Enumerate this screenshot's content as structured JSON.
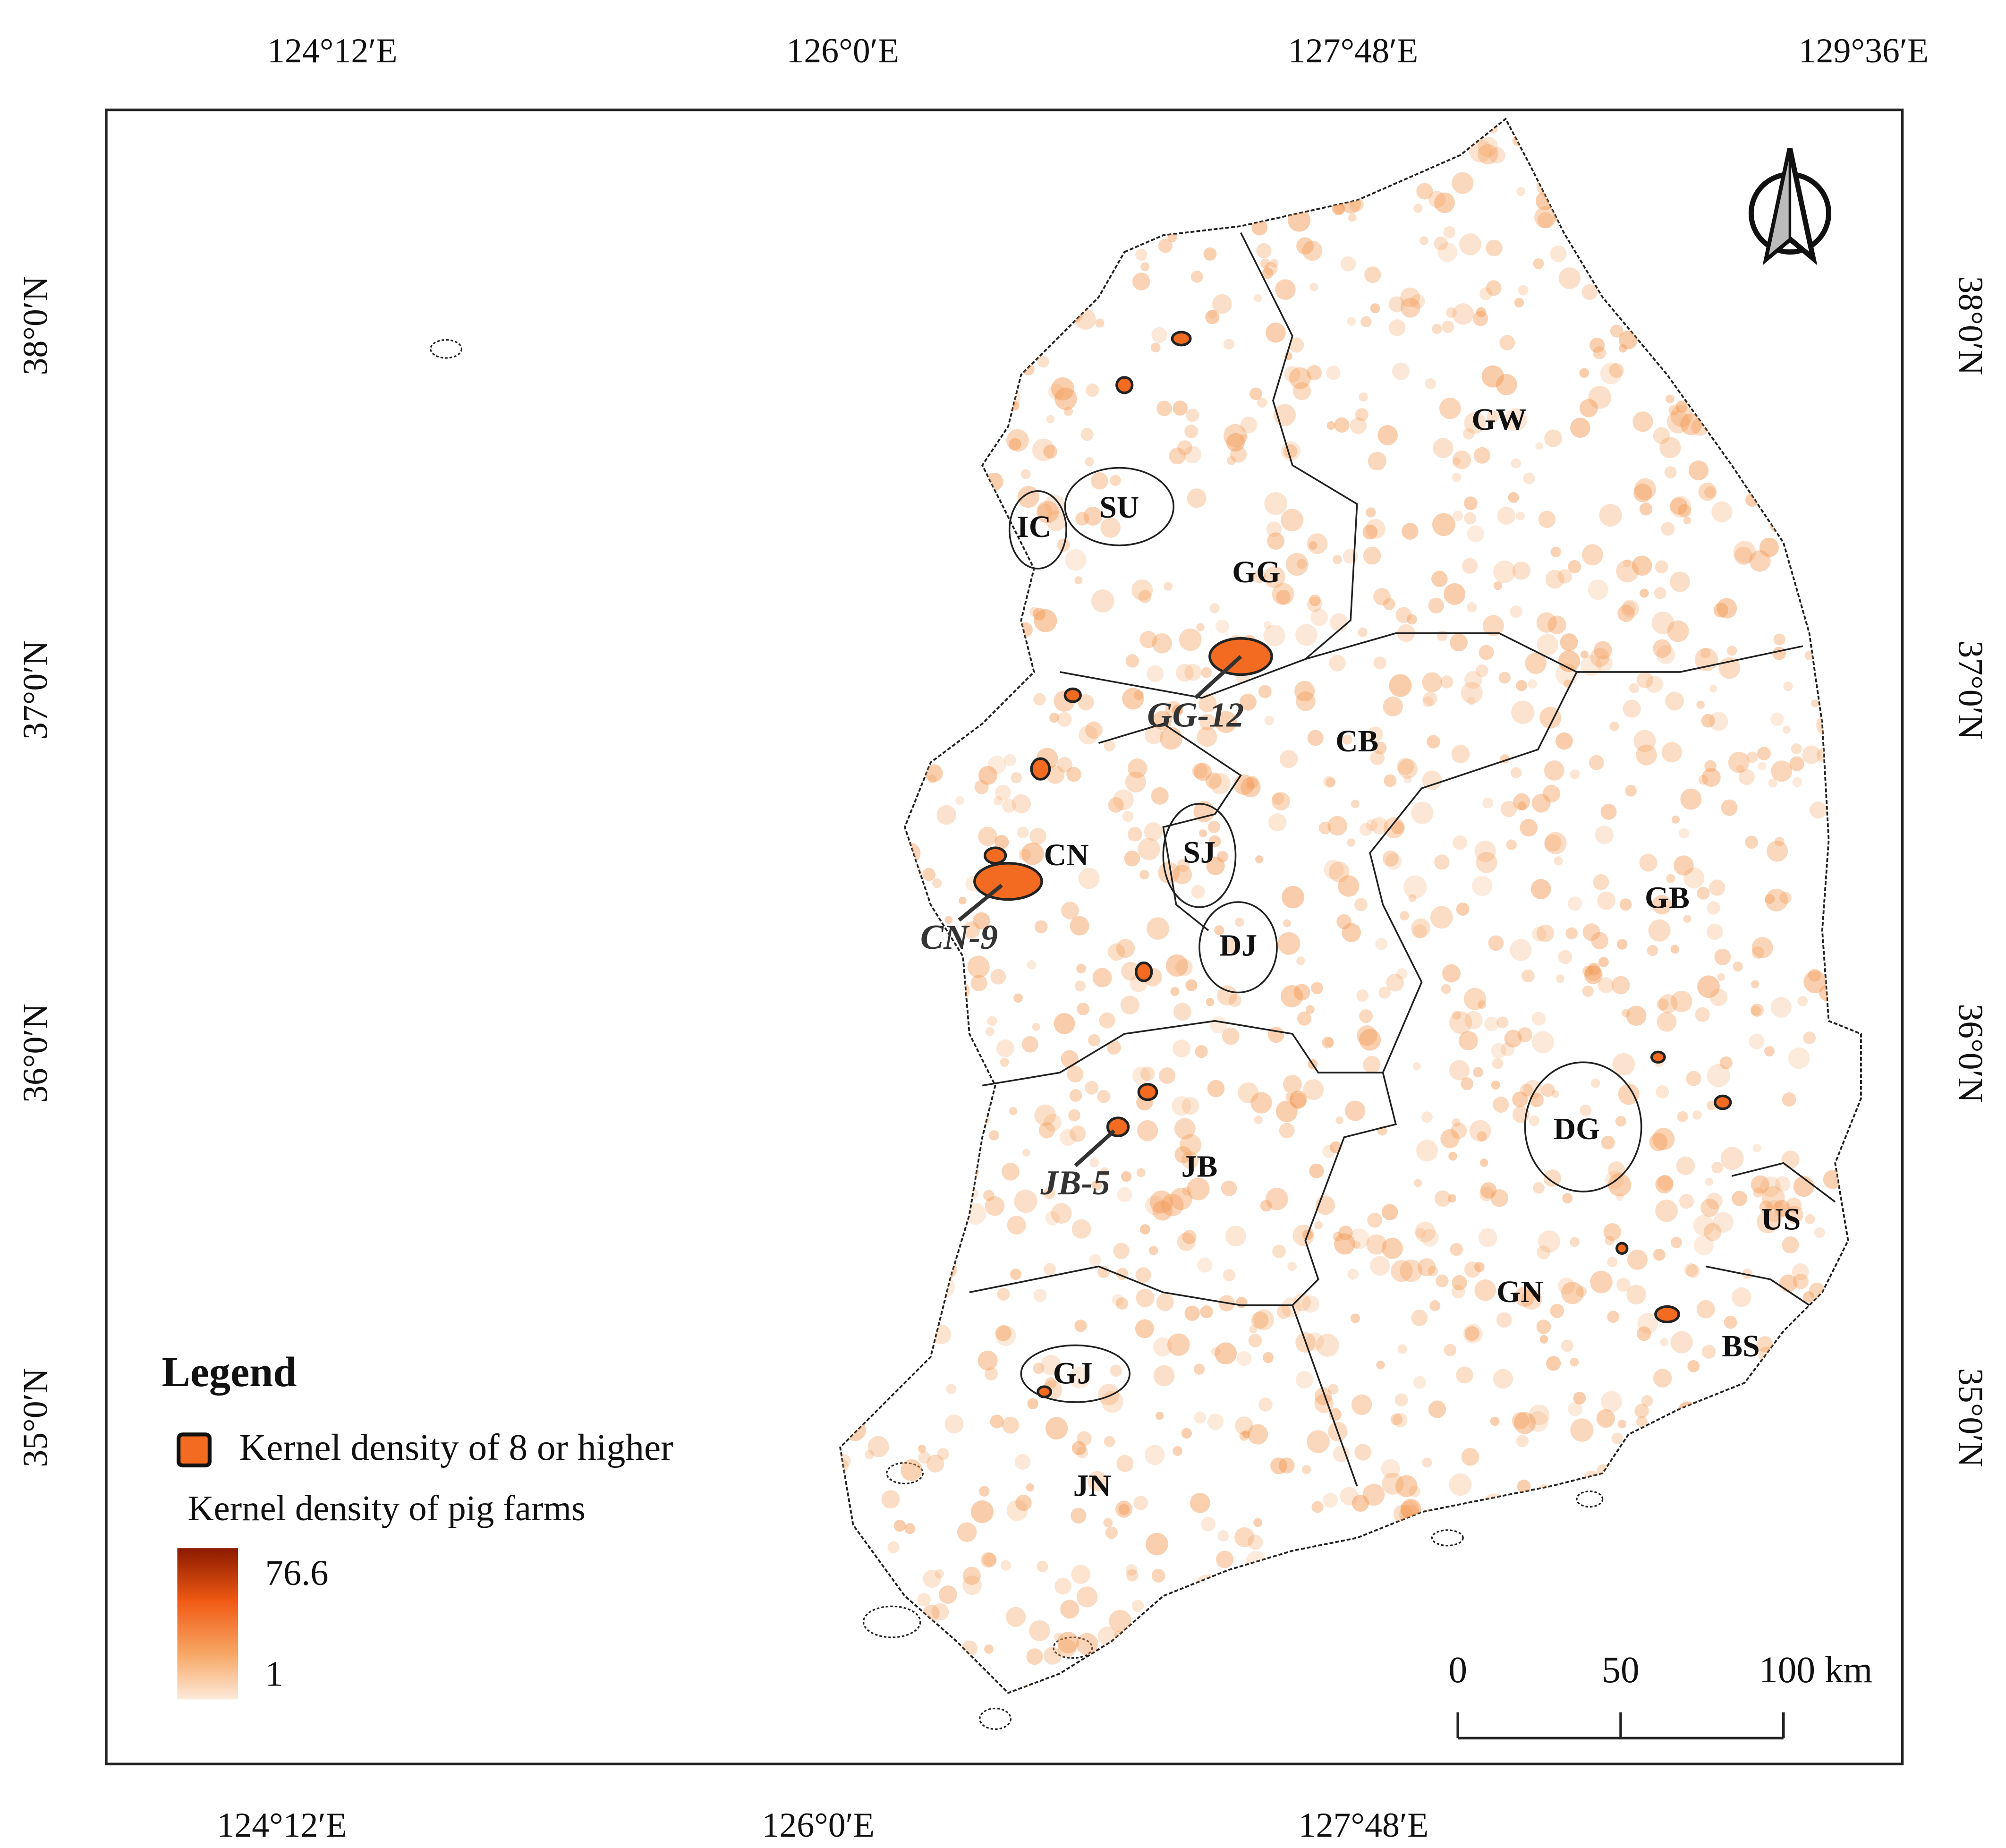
{
  "map": {
    "top_labels": [
      "124°12′E",
      "126°0′E",
      "127°48′E",
      "129°36′E"
    ],
    "bottom_labels": [
      "124°12′E",
      "126°0′E",
      "127°48′E"
    ],
    "left_labels": [
      "38°0′N",
      "37°0′N",
      "36°0′N",
      "35°0′N"
    ],
    "right_labels": [
      "38°0′N",
      "37°0′N",
      "36°0′N",
      "35°0′N"
    ],
    "regions": [
      "GW",
      "GG",
      "SU",
      "IC",
      "CB",
      "CN",
      "SJ",
      "DJ",
      "GB",
      "DG",
      "JB",
      "US",
      "GN",
      "BS",
      "GJ",
      "JN"
    ],
    "hotspots": [
      "GG-12",
      "CN-9",
      "JB-5"
    ]
  },
  "legend": {
    "title": "Legend",
    "hotspot_item": "Kernel density  of  8 or higher",
    "ramp_title": "Kernel density of pig farms",
    "max": "76.6",
    "min": "1"
  },
  "scale_bar": {
    "labels": [
      "0",
      "50",
      "100 km"
    ]
  }
}
